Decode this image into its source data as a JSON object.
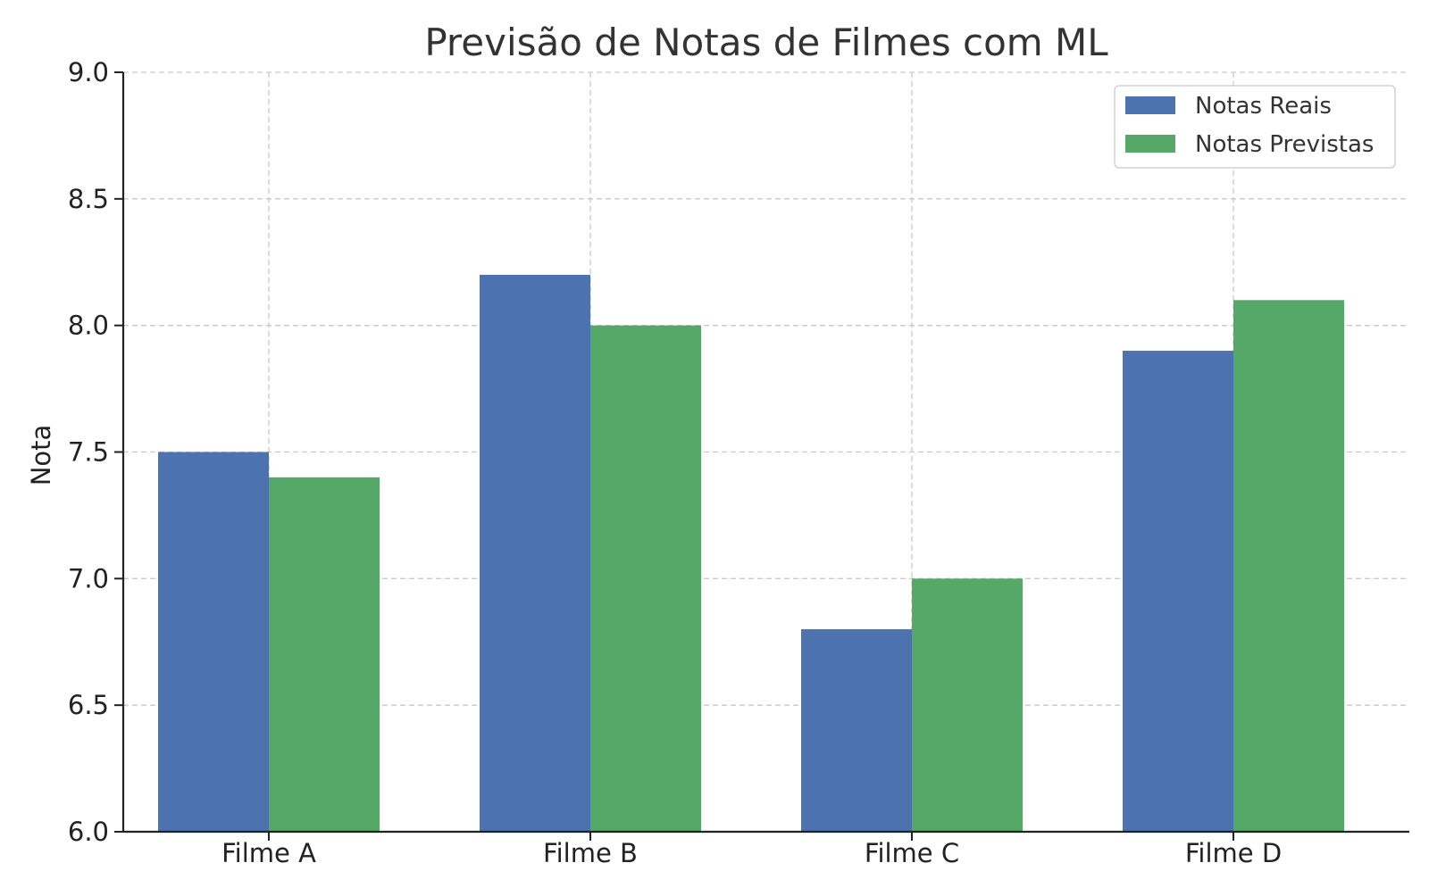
{
  "chart_data": {
    "type": "bar",
    "title": "Previsão de Notas de Filmes com ML",
    "xlabel": "",
    "ylabel": "Nota",
    "categories": [
      "Filme A",
      "Filme B",
      "Filme C",
      "Filme D"
    ],
    "series": [
      {
        "name": "Notas Reais",
        "values": [
          7.5,
          8.2,
          6.8,
          7.9
        ],
        "color": "#4c72b0"
      },
      {
        "name": "Notas Previstas",
        "values": [
          7.4,
          8.0,
          7.0,
          8.1
        ],
        "color": "#55a868"
      }
    ],
    "ylim": [
      6.0,
      9.0
    ],
    "yticks": [
      "6.0",
      "6.5",
      "7.0",
      "7.5",
      "8.0",
      "8.5",
      "9.0"
    ],
    "grid": true,
    "legend_position": "top-right"
  }
}
